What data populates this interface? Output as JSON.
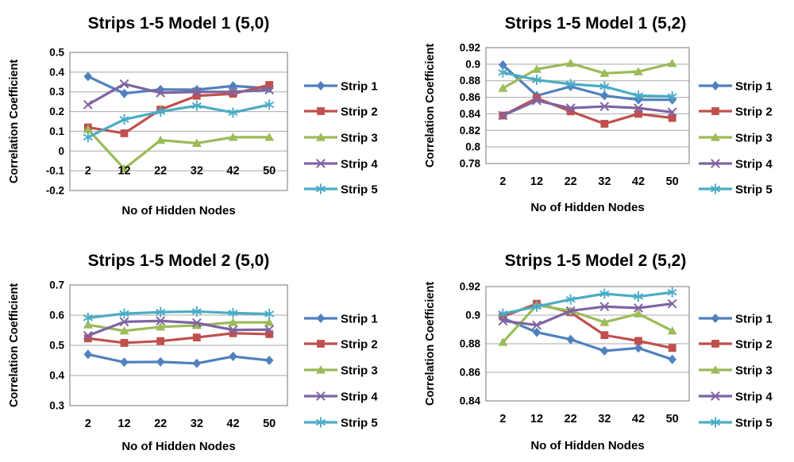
{
  "colors": {
    "text": "#000000",
    "gridline": "#a8a8a8",
    "plot_border": "#8c8c8c",
    "background": "#ffffff"
  },
  "chart_data": [
    {
      "type": "line",
      "title": "Strips 1-5 Model 1 (5,0)",
      "xlabel": "No of Hidden Nodes",
      "ylabel": "Correlation Coefficient",
      "categories": [
        "2",
        "12",
        "22",
        "32",
        "42",
        "50"
      ],
      "ylim": [
        -0.2,
        0.5
      ],
      "yticks": [
        0.5,
        0.4,
        0.3,
        0.2,
        0.1,
        0,
        -0.1,
        -0.2
      ],
      "ytick_labels": [
        "0.5",
        "0.4",
        "0.3",
        "0.2",
        "0.1",
        "0",
        "-0.1",
        "-0.2"
      ],
      "grid": true,
      "legend_position": "right",
      "series": [
        {
          "name": "Strip 1",
          "color": "#4F81BD",
          "marker": "diamond",
          "values": [
            0.378,
            0.292,
            0.312,
            0.311,
            0.33,
            0.318
          ]
        },
        {
          "name": "Strip 2",
          "color": "#C0504D",
          "marker": "square",
          "values": [
            0.12,
            0.09,
            0.21,
            0.28,
            0.29,
            0.335
          ]
        },
        {
          "name": "Strip 3",
          "color": "#9BBB59",
          "marker": "triangle",
          "values": [
            0.11,
            -0.09,
            0.055,
            0.04,
            0.07,
            0.07
          ]
        },
        {
          "name": "Strip 4",
          "color": "#8064A2",
          "marker": "x",
          "values": [
            0.235,
            0.34,
            0.295,
            0.3,
            0.3,
            0.31
          ]
        },
        {
          "name": "Strip 5",
          "color": "#4BACC6",
          "marker": "asterisk",
          "values": [
            0.07,
            0.16,
            0.2,
            0.23,
            0.195,
            0.235
          ]
        }
      ]
    },
    {
      "type": "line",
      "title": "Strips 1-5 Model 1 (5,2)",
      "xlabel": "No of Hidden Nodes",
      "ylabel": "Correlation Coefficient",
      "categories": [
        "2",
        "12",
        "22",
        "32",
        "42",
        "50"
      ],
      "ylim": [
        0.78,
        0.92
      ],
      "yticks": [
        0.92,
        0.9,
        0.88,
        0.86,
        0.84,
        0.82,
        0.8,
        0.78
      ],
      "ytick_labels": [
        "0.92",
        "0.9",
        "0.88",
        "0.86",
        "0.84",
        "0.82",
        "0.8",
        "0.78"
      ],
      "grid": true,
      "legend_position": "right",
      "series": [
        {
          "name": "Strip 1",
          "color": "#4F81BD",
          "marker": "diamond",
          "values": [
            0.899,
            0.862,
            0.873,
            0.862,
            0.857,
            0.857
          ]
        },
        {
          "name": "Strip 2",
          "color": "#C0504D",
          "marker": "square",
          "values": [
            0.838,
            0.859,
            0.843,
            0.828,
            0.84,
            0.835
          ]
        },
        {
          "name": "Strip 3",
          "color": "#9BBB59",
          "marker": "triangle",
          "values": [
            0.871,
            0.894,
            0.901,
            0.889,
            0.891,
            0.901
          ]
        },
        {
          "name": "Strip 4",
          "color": "#8064A2",
          "marker": "x",
          "values": [
            0.838,
            0.856,
            0.847,
            0.849,
            0.847,
            0.842
          ]
        },
        {
          "name": "Strip 5",
          "color": "#4BACC6",
          "marker": "asterisk",
          "values": [
            0.89,
            0.881,
            0.876,
            0.873,
            0.862,
            0.861
          ]
        }
      ]
    },
    {
      "type": "line",
      "title": "Strips 1-5 Model 2 (5,0)",
      "xlabel": "No of Hidden Nodes",
      "ylabel": "Correlation Coefficient",
      "categories": [
        "2",
        "12",
        "22",
        "32",
        "42",
        "50"
      ],
      "ylim": [
        0.3,
        0.7
      ],
      "yticks": [
        0.7,
        0.6,
        0.5,
        0.4,
        0.3
      ],
      "ytick_labels": [
        "0.7",
        "0.6",
        "0.5",
        "0.4",
        "0.3"
      ],
      "grid": true,
      "legend_position": "right",
      "series": [
        {
          "name": "Strip 1",
          "color": "#4F81BD",
          "marker": "diamond",
          "values": [
            0.47,
            0.444,
            0.445,
            0.44,
            0.463,
            0.45
          ]
        },
        {
          "name": "Strip 2",
          "color": "#C0504D",
          "marker": "square",
          "values": [
            0.523,
            0.508,
            0.514,
            0.526,
            0.54,
            0.537
          ]
        },
        {
          "name": "Strip 3",
          "color": "#9BBB59",
          "marker": "triangle",
          "values": [
            0.568,
            0.548,
            0.561,
            0.566,
            0.576,
            0.576
          ]
        },
        {
          "name": "Strip 4",
          "color": "#8064A2",
          "marker": "x",
          "values": [
            0.532,
            0.578,
            0.581,
            0.574,
            0.551,
            0.552
          ]
        },
        {
          "name": "Strip 5",
          "color": "#4BACC6",
          "marker": "asterisk",
          "values": [
            0.591,
            0.605,
            0.61,
            0.612,
            0.607,
            0.604
          ]
        }
      ]
    },
    {
      "type": "line",
      "title": "Strips 1-5 Model 2 (5,2)",
      "xlabel": "No of Hidden Nodes",
      "ylabel": "Correlation Coefficient",
      "categories": [
        "2",
        "12",
        "22",
        "32",
        "42",
        "50"
      ],
      "ylim": [
        0.84,
        0.92
      ],
      "yticks": [
        0.92,
        0.9,
        0.88,
        0.86,
        0.84
      ],
      "ytick_labels": [
        "0.92",
        "0.9",
        "0.88",
        "0.86",
        "0.84"
      ],
      "grid": true,
      "legend_position": "right",
      "series": [
        {
          "name": "Strip 1",
          "color": "#4F81BD",
          "marker": "diamond",
          "values": [
            0.898,
            0.888,
            0.883,
            0.875,
            0.877,
            0.869
          ]
        },
        {
          "name": "Strip 2",
          "color": "#C0504D",
          "marker": "square",
          "values": [
            0.899,
            0.908,
            0.902,
            0.886,
            0.882,
            0.877
          ]
        },
        {
          "name": "Strip 3",
          "color": "#9BBB59",
          "marker": "triangle",
          "values": [
            0.881,
            0.907,
            0.903,
            0.895,
            0.901,
            0.889
          ]
        },
        {
          "name": "Strip 4",
          "color": "#8064A2",
          "marker": "x",
          "values": [
            0.896,
            0.893,
            0.903,
            0.906,
            0.905,
            0.908
          ]
        },
        {
          "name": "Strip 5",
          "color": "#4BACC6",
          "marker": "asterisk",
          "values": [
            0.901,
            0.906,
            0.911,
            0.915,
            0.913,
            0.916
          ]
        }
      ]
    }
  ]
}
